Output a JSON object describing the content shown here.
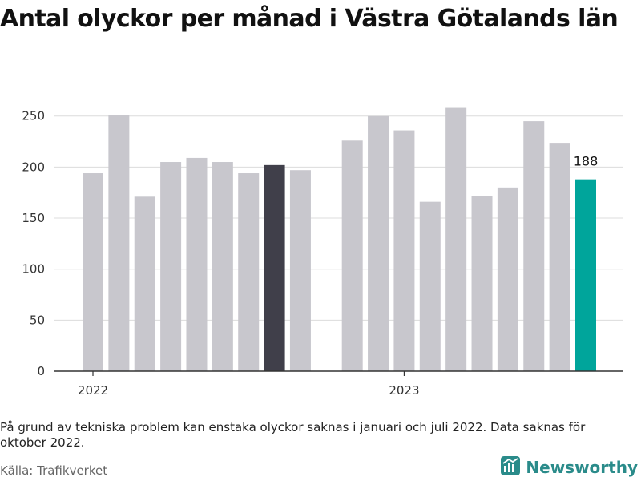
{
  "title": "Antal olyckor per månad i Västra Götalands län",
  "note": "På grund av tekniska problem kan enstaka olyckor saknas i januari och juli 2022. Data saknas för oktober 2022.",
  "source": "Källa: Trafikverket",
  "brand": {
    "name": "Newsworthy",
    "icon": "newsworthy-logo-icon"
  },
  "colors": {
    "bar": "#c8c7cd",
    "highlight_dark": "#403f4a",
    "highlight_latest": "#00a59b",
    "brand": "#2a8b8a"
  },
  "chart_data": {
    "type": "bar",
    "title": "Antal olyckor per månad i Västra Götalands län",
    "xlabel": "",
    "ylabel": "",
    "ylim": [
      0,
      260
    ],
    "yticks": [
      0,
      50,
      100,
      150,
      200,
      250
    ],
    "xtick_labels": [
      "2022",
      "2023"
    ],
    "grid": true,
    "series": [
      {
        "values": [
          {
            "period": "2022-01",
            "value": 194
          },
          {
            "period": "2022-02",
            "value": 251
          },
          {
            "period": "2022-03",
            "value": 171
          },
          {
            "period": "2022-04",
            "value": 205
          },
          {
            "period": "2022-05",
            "value": 209
          },
          {
            "period": "2022-06",
            "value": 205
          },
          {
            "period": "2022-07",
            "value": 194
          },
          {
            "period": "2022-08",
            "value": 202,
            "highlight": "dark"
          },
          {
            "period": "2022-09",
            "value": 197
          },
          {
            "period": "2022-10",
            "value": null
          },
          {
            "period": "2022-11",
            "value": 226
          },
          {
            "period": "2022-12",
            "value": 250
          },
          {
            "period": "2023-01",
            "value": 236
          },
          {
            "period": "2023-02",
            "value": 166
          },
          {
            "period": "2023-03",
            "value": 258
          },
          {
            "period": "2023-04",
            "value": 172
          },
          {
            "period": "2023-05",
            "value": 180
          },
          {
            "period": "2023-06",
            "value": 245
          },
          {
            "period": "2023-07",
            "value": 223
          },
          {
            "period": "2023-08",
            "value": 188,
            "highlight": "latest",
            "label": "188"
          }
        ]
      }
    ]
  }
}
